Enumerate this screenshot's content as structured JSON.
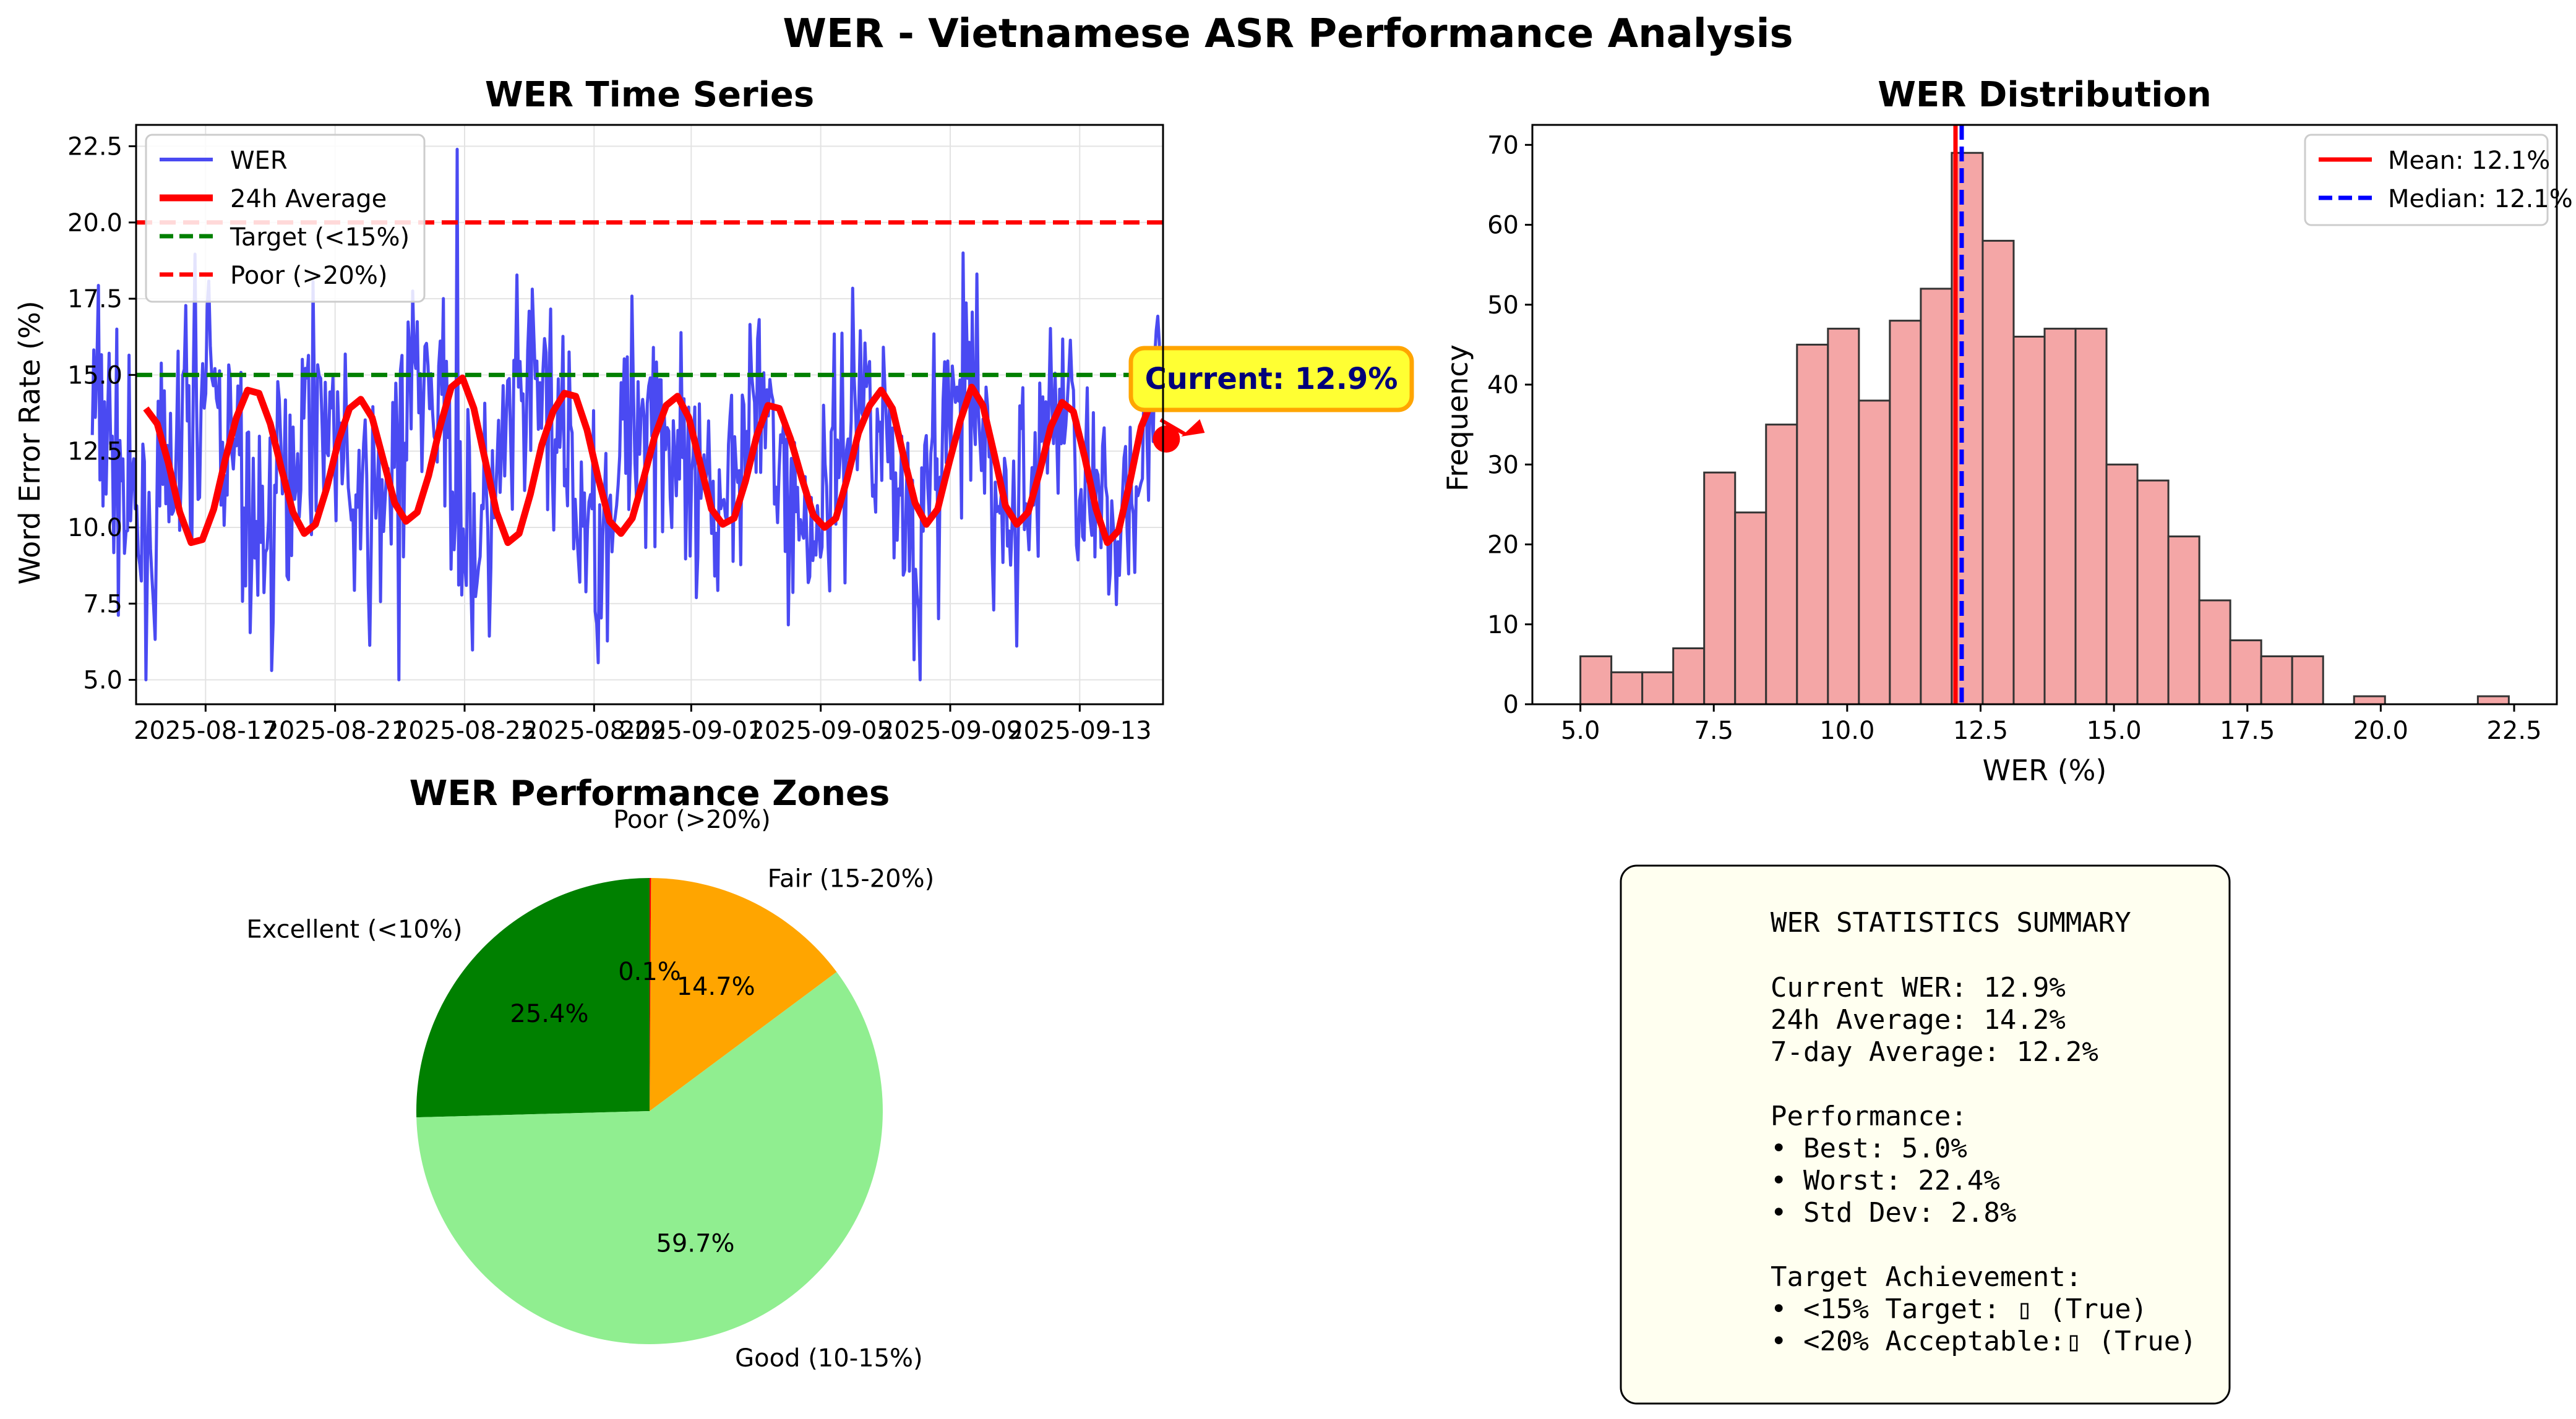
{
  "figure_title": "WER - Vietnamese ASR Performance Analysis",
  "colors": {
    "wer": "#4a4af2",
    "avg": "#ff0000",
    "target": "#008000",
    "poor": "#ff0000",
    "hist_fill": "#f4a6a6",
    "mean": "#ff0000",
    "median": "#0000ff",
    "pie": [
      "#008000",
      "#90ee90",
      "#ffa500",
      "#ff0000"
    ],
    "current_box": "#ffff33",
    "current_border": "#ffa500",
    "current_text": "#00007a",
    "summary_box": "#fffff0"
  },
  "chart_data": [
    {
      "type": "line",
      "title": "WER Time Series",
      "xlabel": "",
      "ylabel": "Word Error Rate (%)",
      "x_tick_labels": [
        "2025-08-17",
        "2025-08-21",
        "2025-08-25",
        "2025-08-29",
        "2025-09-01",
        "2025-09-05",
        "2025-09-09",
        "2025-09-13"
      ],
      "x_start": "2025-08-16",
      "x_end": "2025-09-15",
      "ylim": [
        4.2,
        23.2
      ],
      "y_ticks": [
        "5.0",
        "7.5",
        "10.0",
        "12.5",
        "15.0",
        "17.5",
        "20.0",
        "22.5"
      ],
      "grid": true,
      "legend_position": "top-left",
      "series": [
        {
          "name": "WER",
          "values_note": "hourly samples",
          "mean": 12.1,
          "std": 2.8,
          "min": 5.0,
          "max": 22.4,
          "peak_date": "2025-08-24"
        },
        {
          "name": "24h Average",
          "values": [
            13.9,
            13.4,
            12.1,
            10.5,
            9.5,
            9.6,
            10.6,
            12.2,
            13.6,
            14.5,
            14.4,
            13.4,
            11.9,
            10.5,
            9.8,
            10.1,
            11.3,
            12.8,
            13.9,
            14.2,
            13.6,
            12.2,
            10.8,
            10.2,
            10.5,
            11.7,
            13.3,
            14.6,
            14.9,
            13.9,
            12.2,
            10.5,
            9.5,
            9.8,
            11.1,
            12.7,
            13.8,
            14.4,
            14.3,
            13.2,
            11.6,
            10.2,
            9.8,
            10.3,
            11.6,
            13.0,
            14.0,
            14.3,
            13.6,
            12.1,
            10.6,
            10.1,
            10.3,
            11.5,
            13.0,
            14.0,
            13.9,
            12.9,
            11.6,
            10.4,
            10.0,
            10.3,
            11.6,
            13.1,
            14.0,
            14.5,
            13.9,
            12.3,
            10.8,
            10.1,
            10.6,
            12.1,
            13.5,
            14.6,
            14.0,
            12.4,
            10.7,
            10.1,
            10.5,
            11.8,
            13.3,
            14.1,
            13.8,
            12.3,
            10.6,
            9.5,
            9.9,
            11.5,
            13.3,
            14.2,
            14.2
          ]
        }
      ],
      "reference_lines": [
        {
          "name": "Target (<15%)",
          "y": 15.0
        },
        {
          "name": "Poor (>20%)",
          "y": 20.0
        }
      ],
      "annotation": {
        "text": "Current: 12.9%",
        "value": 12.9
      }
    },
    {
      "type": "bar",
      "title": "WER Distribution",
      "xlabel": "WER (%)",
      "ylabel": "Frequency",
      "bin_start": 5.0,
      "bin_width": 0.58,
      "values": [
        6,
        4,
        4,
        7,
        29,
        24,
        35,
        45,
        47,
        38,
        48,
        52,
        69,
        58,
        46,
        47,
        47,
        30,
        28,
        21,
        13,
        8,
        6,
        6,
        0,
        1,
        0,
        0,
        0,
        1
      ],
      "xlim": [
        4.1,
        23.3
      ],
      "ylim": [
        0,
        72.5
      ],
      "x_ticks": [
        "5.0",
        "7.5",
        "10.0",
        "12.5",
        "15.0",
        "17.5",
        "20.0",
        "22.5"
      ],
      "y_ticks": [
        "0",
        "10",
        "20",
        "30",
        "40",
        "50",
        "60",
        "70"
      ],
      "mean": 12.1,
      "median": 12.1,
      "legend_position": "top-right",
      "legend": [
        "Mean: 12.1%",
        "Median: 12.1%"
      ]
    },
    {
      "type": "pie",
      "title": "WER Performance Zones",
      "labels": [
        "Excellent (<10%)",
        "Good (10-15%)",
        "Fair (15-20%)",
        "Poor (>20%)"
      ],
      "values": [
        25.4,
        59.7,
        14.7,
        0.1
      ],
      "pct_labels": [
        "25.4%",
        "59.7%",
        "14.7%",
        "0.1%"
      ],
      "start_angle_deg": 90,
      "direction": "counterclockwise"
    }
  ],
  "summary": {
    "title": "WER STATISTICS SUMMARY",
    "lines": [
      "Current WER:     12.9%",
      "24h Average:     14.2%",
      "7-day Average:   12.2%",
      "",
      "Performance:",
      "• Best:          5.0%",
      "• Worst:         22.4%",
      "• Std Dev:       2.8%",
      "",
      "Target Achievement:",
      "• <15% Target:   ▯ (True)",
      "• <20% Acceptable:▯ (True)"
    ]
  }
}
